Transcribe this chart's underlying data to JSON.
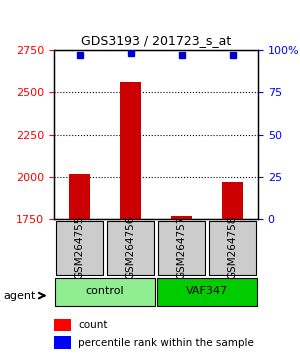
{
  "title": "GDS3193 / 201723_s_at",
  "samples": [
    "GSM264755",
    "GSM264756",
    "GSM264757",
    "GSM264758"
  ],
  "counts": [
    2020,
    2560,
    1770,
    1970
  ],
  "percentile_ranks": [
    97,
    98,
    97,
    97
  ],
  "groups": [
    "control",
    "control",
    "VAF347",
    "VAF347"
  ],
  "group_labels": [
    "control",
    "VAF347"
  ],
  "group_colors": [
    "#90EE90",
    "#00CC00"
  ],
  "bar_color": "#CC0000",
  "dot_color": "#0000CC",
  "left_ylim": [
    1750,
    2750
  ],
  "left_yticks": [
    1750,
    2000,
    2250,
    2500,
    2750
  ],
  "right_ylim": [
    0,
    100
  ],
  "right_yticks": [
    0,
    25,
    50,
    75,
    100
  ],
  "right_yticklabels": [
    "0",
    "25",
    "50",
    "75",
    "100%"
  ],
  "bg_color": "#ffffff",
  "sample_box_color": "#cccccc",
  "grid_color": "#000000"
}
